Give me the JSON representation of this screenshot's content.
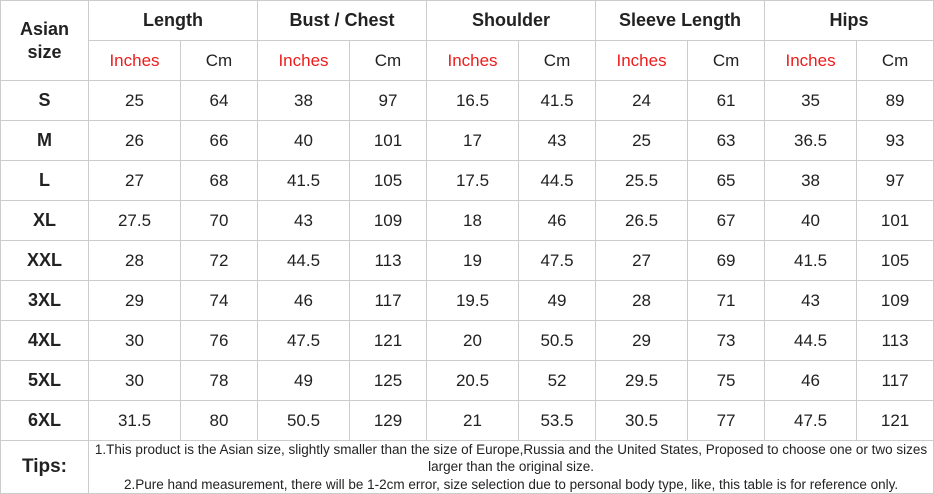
{
  "colors": {
    "red_text": "#ee1c1c",
    "header_bg": "#f2f2f2",
    "border": "#cccccc",
    "text": "#222222"
  },
  "table": {
    "corner_label": "Asian size",
    "groups": [
      {
        "label": "Length"
      },
      {
        "label": "Bust / Chest"
      },
      {
        "label": "Shoulder"
      },
      {
        "label": "Sleeve Length"
      },
      {
        "label": "Hips"
      }
    ],
    "unit_headers": {
      "inches": "Inches",
      "cm": "Cm"
    },
    "rows": [
      {
        "size": "S",
        "values": [
          "25",
          "64",
          "38",
          "97",
          "16.5",
          "41.5",
          "24",
          "61",
          "35",
          "89"
        ]
      },
      {
        "size": "M",
        "values": [
          "26",
          "66",
          "40",
          "101",
          "17",
          "43",
          "25",
          "63",
          "36.5",
          "93"
        ]
      },
      {
        "size": "L",
        "values": [
          "27",
          "68",
          "41.5",
          "105",
          "17.5",
          "44.5",
          "25.5",
          "65",
          "38",
          "97"
        ]
      },
      {
        "size": "XL",
        "values": [
          "27.5",
          "70",
          "43",
          "109",
          "18",
          "46",
          "26.5",
          "67",
          "40",
          "101"
        ]
      },
      {
        "size": "XXL",
        "values": [
          "28",
          "72",
          "44.5",
          "113",
          "19",
          "47.5",
          "27",
          "69",
          "41.5",
          "105"
        ]
      },
      {
        "size": "3XL",
        "values": [
          "29",
          "74",
          "46",
          "117",
          "19.5",
          "49",
          "28",
          "71",
          "43",
          "109"
        ]
      },
      {
        "size": "4XL",
        "values": [
          "30",
          "76",
          "47.5",
          "121",
          "20",
          "50.5",
          "29",
          "73",
          "44.5",
          "113"
        ]
      },
      {
        "size": "5XL",
        "values": [
          "30",
          "78",
          "49",
          "125",
          "20.5",
          "52",
          "29.5",
          "75",
          "46",
          "117"
        ]
      },
      {
        "size": "6XL",
        "values": [
          "31.5",
          "80",
          "50.5",
          "129",
          "21",
          "53.5",
          "30.5",
          "77",
          "47.5",
          "121"
        ]
      }
    ],
    "tips": {
      "label": "Tips:",
      "lines": [
        "1.This product is the Asian size, slightly smaller than the size of Europe,Russia and the United States, Proposed to choose one or two sizes larger than the original size.",
        "2.Pure hand measurement, there will be 1-2cm error, size selection due to personal body type, like, this table is for reference only."
      ]
    }
  },
  "chart_data": {
    "type": "table",
    "title": "Asian size chart",
    "columns": [
      "Asian size",
      "Length Inches",
      "Length Cm",
      "Bust / Chest Inches",
      "Bust / Chest Cm",
      "Shoulder Inches",
      "Shoulder Cm",
      "Sleeve Length Inches",
      "Sleeve Length Cm",
      "Hips Inches",
      "Hips Cm"
    ],
    "rows": [
      [
        "S",
        25,
        64,
        38,
        97,
        16.5,
        41.5,
        24,
        61,
        35,
        89
      ],
      [
        "M",
        26,
        66,
        40,
        101,
        17,
        43,
        25,
        63,
        36.5,
        93
      ],
      [
        "L",
        27,
        68,
        41.5,
        105,
        17.5,
        44.5,
        25.5,
        65,
        38,
        97
      ],
      [
        "XL",
        27.5,
        70,
        43,
        109,
        18,
        46,
        26.5,
        67,
        40,
        101
      ],
      [
        "XXL",
        28,
        72,
        44.5,
        113,
        19,
        47.5,
        27,
        69,
        41.5,
        105
      ],
      [
        "3XL",
        29,
        74,
        46,
        117,
        19.5,
        49,
        28,
        71,
        43,
        109
      ],
      [
        "4XL",
        30,
        76,
        47.5,
        121,
        20,
        50.5,
        29,
        73,
        44.5,
        113
      ],
      [
        "5XL",
        30,
        78,
        49,
        125,
        20.5,
        52,
        29.5,
        75,
        46,
        117
      ],
      [
        "6XL",
        31.5,
        80,
        50.5,
        129,
        21,
        53.5,
        30.5,
        77,
        47.5,
        121
      ]
    ],
    "notes": [
      "1.This product is the Asian size, slightly smaller than the size of Europe,Russia and the United States, Proposed to choose one or two sizes larger than the original size.",
      "2.Pure hand measurement, there will be 1-2cm error, size selection due to personal body type, like, this table is for reference only."
    ]
  }
}
